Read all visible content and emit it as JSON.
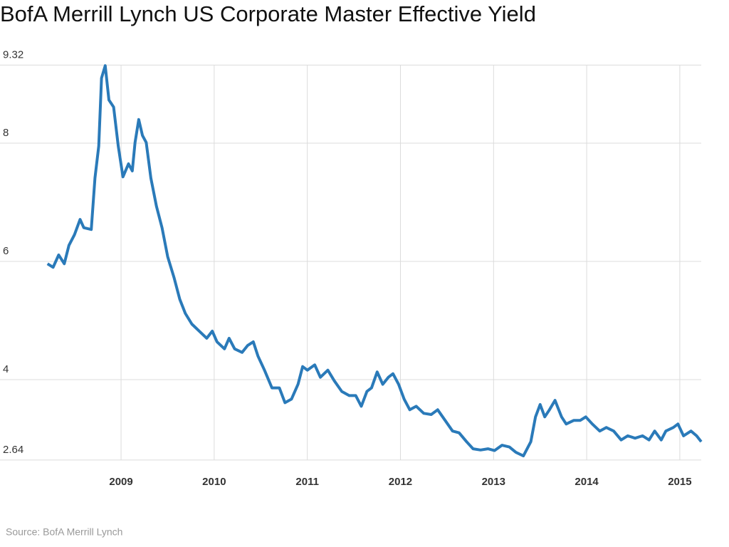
{
  "chart_data": {
    "type": "line",
    "title": "BofA Merrill Lynch US Corporate Master Effective Yield",
    "source": "Source: BofA Merrill Lynch",
    "x": [
      2008.21,
      2008.27,
      2008.33,
      2008.39,
      2008.44,
      2008.5,
      2008.56,
      2008.6,
      2008.68,
      2008.72,
      2008.76,
      2008.79,
      2008.83,
      2008.87,
      2008.92,
      2008.97,
      2009.02,
      2009.08,
      2009.12,
      2009.15,
      2009.19,
      2009.23,
      2009.27,
      2009.32,
      2009.38,
      2009.44,
      2009.5,
      2009.57,
      2009.63,
      2009.69,
      2009.76,
      2009.84,
      2009.92,
      2009.98,
      2010.03,
      2010.11,
      2010.16,
      2010.22,
      2010.3,
      2010.36,
      2010.42,
      2010.47,
      2010.54,
      2010.62,
      2010.7,
      2010.76,
      2010.83,
      2010.9,
      2010.95,
      2011.0,
      2011.08,
      2011.14,
      2011.22,
      2011.29,
      2011.37,
      2011.45,
      2011.52,
      2011.58,
      2011.64,
      2011.69,
      2011.75,
      2011.81,
      2011.87,
      2011.92,
      2011.98,
      2012.04,
      2012.1,
      2012.17,
      2012.25,
      2012.33,
      2012.4,
      2012.48,
      2012.56,
      2012.63,
      2012.71,
      2012.78,
      2012.86,
      2012.94,
      2013.01,
      2013.09,
      2013.17,
      2013.24,
      2013.32,
      2013.4,
      2013.45,
      2013.5,
      2013.55,
      2013.6,
      2013.66,
      2013.73,
      2013.78,
      2013.86,
      2013.93,
      2013.99,
      2014.06,
      2014.14,
      2014.21,
      2014.29,
      2014.37,
      2014.44,
      2014.52,
      2014.6,
      2014.67,
      2014.73,
      2014.8,
      2014.85,
      2014.93,
      2014.98,
      2015.04,
      2015.12,
      2015.18,
      2015.23
    ],
    "series": [
      {
        "name": "Effective Yield",
        "color": "#2a7ab9",
        "values": [
          5.96,
          5.9,
          6.11,
          5.96,
          6.27,
          6.45,
          6.71,
          6.57,
          6.54,
          7.41,
          7.95,
          9.1,
          9.31,
          8.73,
          8.61,
          7.95,
          7.43,
          7.65,
          7.53,
          8.01,
          8.4,
          8.13,
          8.01,
          7.41,
          6.93,
          6.57,
          6.08,
          5.72,
          5.36,
          5.12,
          4.94,
          4.82,
          4.7,
          4.82,
          4.64,
          4.52,
          4.7,
          4.52,
          4.46,
          4.58,
          4.64,
          4.4,
          4.16,
          3.86,
          3.86,
          3.61,
          3.67,
          3.92,
          4.22,
          4.16,
          4.25,
          4.04,
          4.16,
          3.98,
          3.8,
          3.73,
          3.73,
          3.55,
          3.8,
          3.86,
          4.13,
          3.92,
          4.04,
          4.1,
          3.92,
          3.67,
          3.49,
          3.55,
          3.43,
          3.41,
          3.49,
          3.31,
          3.13,
          3.1,
          2.95,
          2.83,
          2.81,
          2.83,
          2.8,
          2.89,
          2.86,
          2.77,
          2.71,
          2.95,
          3.37,
          3.58,
          3.37,
          3.49,
          3.65,
          3.37,
          3.25,
          3.31,
          3.31,
          3.37,
          3.25,
          3.13,
          3.19,
          3.13,
          2.98,
          3.05,
          3.01,
          3.05,
          2.98,
          3.13,
          2.98,
          3.13,
          3.19,
          3.25,
          3.05,
          3.13,
          3.05,
          2.95
        ]
      }
    ],
    "xlim": [
      2007.7,
      2015.23
    ],
    "xticks": [
      2009,
      2010,
      2011,
      2012,
      2013,
      2014,
      2015
    ],
    "ylim": [
      2.64,
      9.32
    ],
    "yticks": [
      9.32,
      8,
      6,
      4,
      2.64
    ],
    "grid": true
  }
}
